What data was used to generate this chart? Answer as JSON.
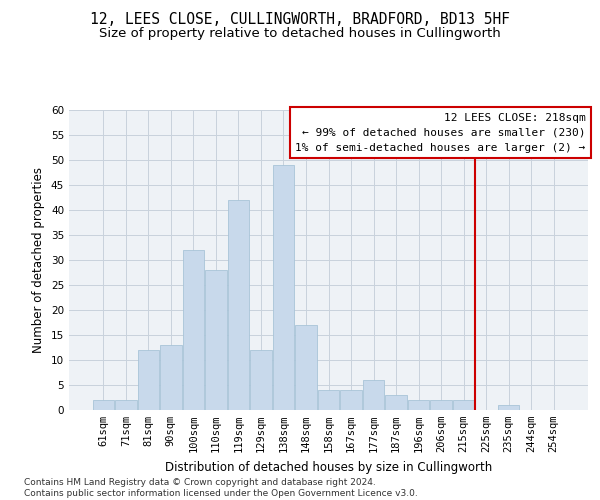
{
  "title": "12, LEES CLOSE, CULLINGWORTH, BRADFORD, BD13 5HF",
  "subtitle": "Size of property relative to detached houses in Cullingworth",
  "xlabel": "Distribution of detached houses by size in Cullingworth",
  "ylabel": "Number of detached properties",
  "categories": [
    "61sqm",
    "71sqm",
    "81sqm",
    "90sqm",
    "100sqm",
    "110sqm",
    "119sqm",
    "129sqm",
    "138sqm",
    "148sqm",
    "158sqm",
    "167sqm",
    "177sqm",
    "187sqm",
    "196sqm",
    "206sqm",
    "215sqm",
    "225sqm",
    "235sqm",
    "244sqm",
    "254sqm"
  ],
  "values": [
    2,
    2,
    12,
    13,
    32,
    28,
    42,
    12,
    49,
    17,
    4,
    4,
    6,
    3,
    2,
    2,
    2,
    0,
    1,
    0,
    0
  ],
  "bar_color": "#c8d9eb",
  "bar_edge_color": "#a8c4d8",
  "grid_color": "#c8d2dc",
  "background_color": "#eef2f6",
  "ref_line_color": "#cc0000",
  "annotation_text": "12 LEES CLOSE: 218sqm\n← 99% of detached houses are smaller (230)\n1% of semi-detached houses are larger (2) →",
  "annotation_box_color": "#cc0000",
  "ylim": [
    0,
    60
  ],
  "yticks": [
    0,
    5,
    10,
    15,
    20,
    25,
    30,
    35,
    40,
    45,
    50,
    55,
    60
  ],
  "footer": "Contains HM Land Registry data © Crown copyright and database right 2024.\nContains public sector information licensed under the Open Government Licence v3.0.",
  "title_fontsize": 10.5,
  "subtitle_fontsize": 9.5,
  "axis_label_fontsize": 8.5,
  "tick_fontsize": 7.5,
  "annotation_fontsize": 8,
  "footer_fontsize": 6.5
}
